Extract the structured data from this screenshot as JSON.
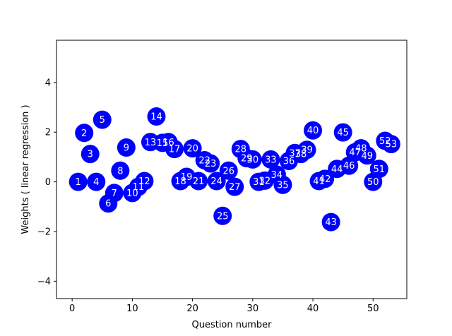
{
  "chart_data": {
    "type": "scatter",
    "title": "",
    "xlabel": "Question number",
    "ylabel": "Weights ( linear regression )",
    "xlim": [
      -2.6,
      55.6
    ],
    "ylim": [
      -4.7,
      5.7
    ],
    "xticks": [
      0,
      10,
      20,
      30,
      40,
      50
    ],
    "yticks": [
      -4,
      -2,
      0,
      2,
      4
    ],
    "grid": false,
    "legend": "none",
    "marker_color": "#0000ff",
    "label_color": "#ffffff",
    "points": [
      {
        "label": "1",
        "x": 1,
        "y": 0.0
      },
      {
        "label": "2",
        "x": 2,
        "y": 1.97
      },
      {
        "label": "3",
        "x": 3,
        "y": 1.12
      },
      {
        "label": "4",
        "x": 4,
        "y": 0.0
      },
      {
        "label": "5",
        "x": 5,
        "y": 2.5
      },
      {
        "label": "6",
        "x": 6,
        "y": -0.87
      },
      {
        "label": "7",
        "x": 7,
        "y": -0.45
      },
      {
        "label": "8",
        "x": 8,
        "y": 0.45
      },
      {
        "label": "9",
        "x": 9,
        "y": 1.38
      },
      {
        "label": "10",
        "x": 10,
        "y": -0.45
      },
      {
        "label": "11",
        "x": 11,
        "y": -0.2
      },
      {
        "label": "12",
        "x": 12,
        "y": 0.03
      },
      {
        "label": "13",
        "x": 13,
        "y": 1.6
      },
      {
        "label": "14",
        "x": 14,
        "y": 2.63
      },
      {
        "label": "15",
        "x": 15,
        "y": 1.57
      },
      {
        "label": "16",
        "x": 16,
        "y": 1.6
      },
      {
        "label": "17",
        "x": 17,
        "y": 1.32
      },
      {
        "label": "18",
        "x": 18,
        "y": 0.03
      },
      {
        "label": "19",
        "x": 19,
        "y": 0.2
      },
      {
        "label": "20",
        "x": 20,
        "y": 1.35
      },
      {
        "label": "21",
        "x": 21,
        "y": 0.03
      },
      {
        "label": "22",
        "x": 22,
        "y": 0.87
      },
      {
        "label": "23",
        "x": 23,
        "y": 0.74
      },
      {
        "label": "24",
        "x": 24,
        "y": 0.03
      },
      {
        "label": "25",
        "x": 25,
        "y": -1.37
      },
      {
        "label": "26",
        "x": 26,
        "y": 0.45
      },
      {
        "label": "27",
        "x": 27,
        "y": -0.2
      },
      {
        "label": "28",
        "x": 28,
        "y": 1.32
      },
      {
        "label": "29",
        "x": 29,
        "y": 0.95
      },
      {
        "label": "30",
        "x": 30,
        "y": 0.9
      },
      {
        "label": "31",
        "x": 31,
        "y": 0.0
      },
      {
        "label": "32",
        "x": 32,
        "y": 0.05
      },
      {
        "label": "33",
        "x": 33,
        "y": 0.9
      },
      {
        "label": "34",
        "x": 34,
        "y": 0.29
      },
      {
        "label": "35",
        "x": 35,
        "y": -0.12
      },
      {
        "label": "36",
        "x": 36,
        "y": 0.84
      },
      {
        "label": "37",
        "x": 37,
        "y": 1.16
      },
      {
        "label": "38",
        "x": 38,
        "y": 1.12
      },
      {
        "label": "39",
        "x": 39,
        "y": 1.29
      },
      {
        "label": "40",
        "x": 40,
        "y": 2.07
      },
      {
        "label": "41",
        "x": 41,
        "y": 0.03
      },
      {
        "label": "42",
        "x": 42,
        "y": 0.12
      },
      {
        "label": "43",
        "x": 43,
        "y": -1.62
      },
      {
        "label": "44",
        "x": 44,
        "y": 0.52
      },
      {
        "label": "45",
        "x": 45,
        "y": 1.99
      },
      {
        "label": "46",
        "x": 46,
        "y": 0.65
      },
      {
        "label": "47",
        "x": 47,
        "y": 1.19
      },
      {
        "label": "48",
        "x": 48,
        "y": 1.35
      },
      {
        "label": "49",
        "x": 49,
        "y": 1.06
      },
      {
        "label": "50",
        "x": 50,
        "y": 0.0
      },
      {
        "label": "51",
        "x": 51,
        "y": 0.52
      },
      {
        "label": "52",
        "x": 52,
        "y": 1.65
      },
      {
        "label": "53",
        "x": 53,
        "y": 1.52
      }
    ]
  }
}
